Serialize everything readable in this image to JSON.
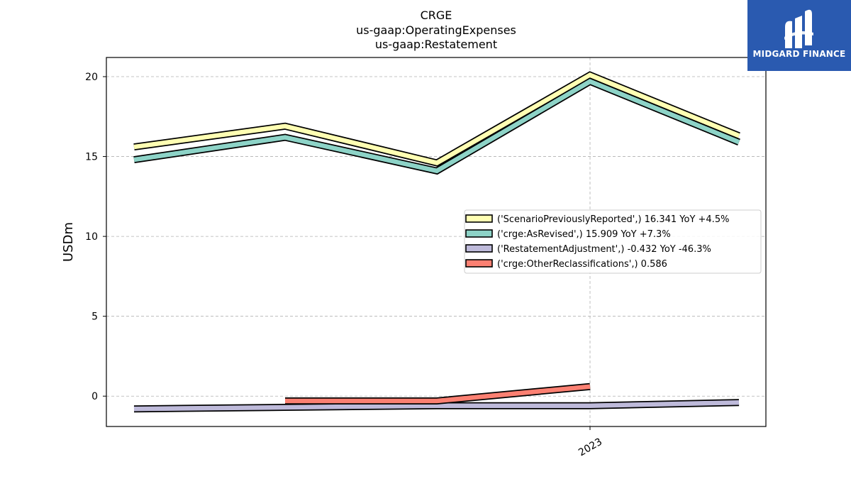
{
  "chart_data": {
    "type": "line",
    "title": "CRGE",
    "subtitle_lines": [
      "us-gaap:OperatingExpenses",
      "us-gaap:Restatement"
    ],
    "ylabel": "USDm",
    "xlabel": "",
    "x_tick_labels": [
      "2023"
    ],
    "y_ticks": [
      0,
      5,
      10,
      15,
      20
    ],
    "ylim": [
      -1.9,
      21.2
    ],
    "grid": true,
    "legend_position": "center-right",
    "series": [
      {
        "name": "('ScenarioPreviouslyReported',) 16.341 YoY +4.5%",
        "color": "#ffffb3",
        "values": [
          15.6,
          16.9,
          14.6,
          20.1,
          16.3
        ]
      },
      {
        "name": "('crge:AsRevised',) 15.909 YoY +7.3%",
        "color": "#8dd3c7",
        "values": [
          14.8,
          16.2,
          14.1,
          19.7,
          15.9
        ]
      },
      {
        "name": "('RestatementAdjustment',) -0.432 YoY -46.3%",
        "color": "#bebada",
        "values": [
          -0.8,
          -0.7,
          -0.6,
          -0.6,
          -0.4
        ]
      },
      {
        "name": "('crge:OtherReclassifications',) 0.586",
        "color": "#fb8072",
        "values": [
          null,
          -0.3,
          -0.3,
          0.6,
          null
        ]
      }
    ]
  },
  "logo": {
    "text": "MIDGARD FINANCE",
    "bg_color": "#2a5ab0"
  }
}
